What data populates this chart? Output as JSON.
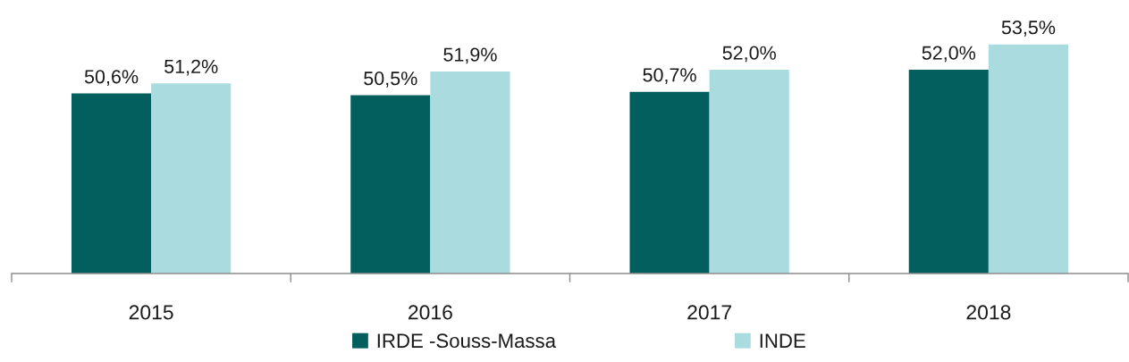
{
  "chart_data": {
    "type": "bar",
    "categories": [
      "2015",
      "2016",
      "2017",
      "2018"
    ],
    "series": [
      {
        "name": "IRDE -Souss-Massa",
        "color": "#035f5d",
        "values": [
          50.6,
          50.5,
          50.7,
          52.0
        ],
        "value_labels": [
          "50,6%",
          "50,5%",
          "50,7%",
          "52,0%"
        ]
      },
      {
        "name": "INDE",
        "color": "#aadcdf",
        "values": [
          51.2,
          51.9,
          52.0,
          53.5
        ],
        "value_labels": [
          "51,2%",
          "51,9%",
          "52,0%",
          "53,5%"
        ]
      }
    ],
    "ylim": [
      40,
      53.5
    ],
    "tick_labels": "x",
    "legend": "bottom",
    "grid": false
  }
}
